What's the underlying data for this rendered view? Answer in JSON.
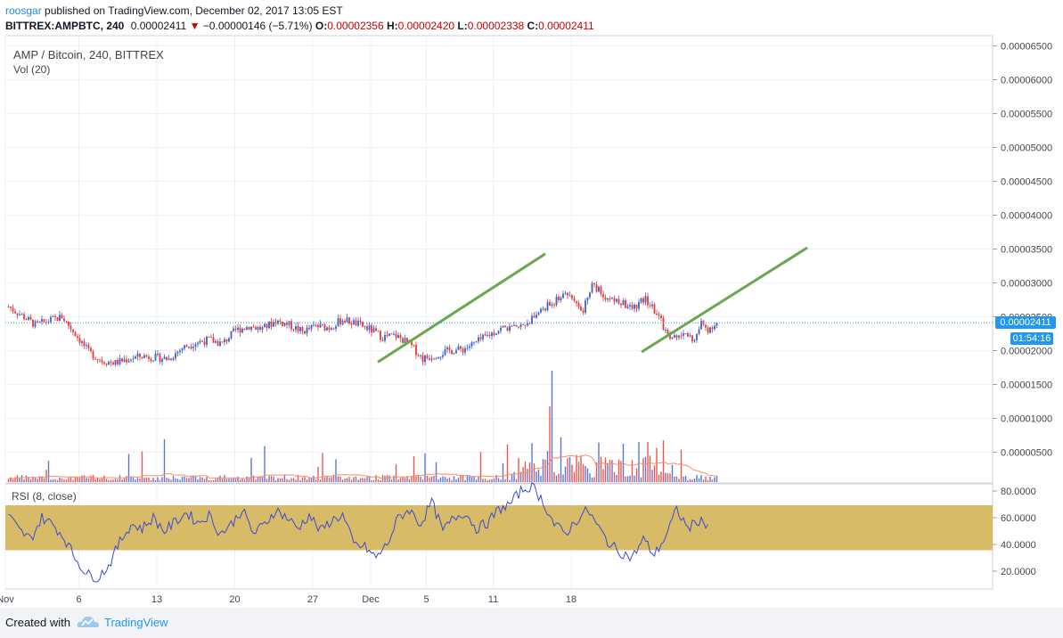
{
  "header": {
    "username": "roosgar",
    "published_text": "published on TradingView.com, December 02, 2017 13:05 EST",
    "symbol_interval": "BITTREX:AMPBTC, 240",
    "last_price": "0.00002411",
    "change": "−0.00000146 (−5.71%)",
    "o_label": "O:",
    "o_value": "0.00002356",
    "h_label": "H:",
    "h_value": "0.00002420",
    "l_label": "L:",
    "l_value": "0.00002338",
    "c_label": "C:",
    "c_value": "0.00002411"
  },
  "price_pane": {
    "title": "AMP / Bitcoin, 240, BITTREX",
    "volume_label": "Vol (20)",
    "price_tag": "0.00002411",
    "countdown_tag": "01:54:16"
  },
  "rsi_pane": {
    "title": "RSI (8, close)"
  },
  "footer": {
    "created_with": "Created with",
    "brand": "TradingView"
  },
  "colors": {
    "up": "#3d5fc8",
    "down": "#e53935",
    "trendline": "#6aa84f",
    "rsi_line": "#3949d6",
    "rsi_band": "#d4b456",
    "ma_line": "#ff8a65",
    "price_line": "#2196f3"
  },
  "chart_data": [
    {
      "type": "candlestick",
      "price_axis_ticks": [
        "0.00000500",
        "0.00001000",
        "0.00001500",
        "0.00002000",
        "0.00002500",
        "0.00003000",
        "0.00003500",
        "0.00004000",
        "0.00004500",
        "0.00005000",
        "0.00005500",
        "0.00006000",
        "0.00006500"
      ],
      "price_axis_values": [
        5e-06,
        1e-05,
        1.5e-05,
        2e-05,
        2.5e-05,
        3e-05,
        3.5e-05,
        4e-05,
        4.5e-05,
        5e-05,
        5.5e-05,
        6e-05,
        6.5e-05
      ],
      "x_tick_labels": [
        "Nov",
        "6",
        "13",
        "20",
        "27",
        "Dec",
        "5",
        "11",
        "18"
      ],
      "x_tick_index": [
        -1,
        32,
        67,
        102,
        137,
        163,
        188,
        218,
        253
      ],
      "last_price": 2.411e-05,
      "close_path": [
        [
          0,
          2.65e-05
        ],
        [
          6,
          2.52e-05
        ],
        [
          12,
          2.38e-05
        ],
        [
          18,
          2.44e-05
        ],
        [
          24,
          2.5e-05
        ],
        [
          30,
          2.25e-05
        ],
        [
          36,
          1.98e-05
        ],
        [
          42,
          1.85e-05
        ],
        [
          48,
          1.82e-05
        ],
        [
          54,
          1.88e-05
        ],
        [
          60,
          1.92e-05
        ],
        [
          66,
          1.9e-05
        ],
        [
          72,
          1.88e-05
        ],
        [
          78,
          2.04e-05
        ],
        [
          84,
          2.12e-05
        ],
        [
          90,
          2.16e-05
        ],
        [
          96,
          2.1e-05
        ],
        [
          102,
          2.3e-05
        ],
        [
          108,
          2.36e-05
        ],
        [
          114,
          2.32e-05
        ],
        [
          120,
          2.44e-05
        ],
        [
          126,
          2.38e-05
        ],
        [
          132,
          2.28e-05
        ],
        [
          138,
          2.36e-05
        ],
        [
          144,
          2.34e-05
        ],
        [
          150,
          2.46e-05
        ],
        [
          156,
          2.4e-05
        ],
        [
          162,
          2.32e-05
        ],
        [
          168,
          2.2e-05
        ],
        [
          174,
          2.22e-05
        ],
        [
          180,
          2.1e-05
        ],
        [
          186,
          1.88e-05
        ],
        [
          192,
          1.94e-05
        ],
        [
          198,
          2e-05
        ],
        [
          204,
          2.02e-05
        ],
        [
          210,
          2.12e-05
        ],
        [
          216,
          2.24e-05
        ],
        [
          222,
          2.34e-05
        ],
        [
          228,
          2.32e-05
        ],
        [
          234,
          2.44e-05
        ],
        [
          240,
          2.62e-05
        ],
        [
          246,
          2.74e-05
        ],
        [
          250,
          2.86e-05
        ],
        [
          254,
          2.78e-05
        ],
        [
          258,
          2.6e-05
        ],
        [
          262,
          3e-05
        ],
        [
          266,
          2.85e-05
        ],
        [
          270,
          2.76e-05
        ],
        [
          274,
          2.72e-05
        ],
        [
          280,
          2.62e-05
        ],
        [
          286,
          2.76e-05
        ],
        [
          292,
          2.5e-05
        ],
        [
          296,
          2.22e-05
        ],
        [
          300,
          2.18e-05
        ],
        [
          304,
          2.26e-05
        ],
        [
          308,
          2.14e-05
        ],
        [
          311,
          2.4e-05
        ],
        [
          314,
          2.32e-05
        ],
        [
          318,
          2.41e-05
        ]
      ],
      "volume_max": 1.8e-06,
      "trendlines": [
        {
          "from": [
            1.83e-05
          ],
          "to": [
            3.43e-05
          ]
        },
        {
          "from": [
            1.98e-05
          ],
          "to": [
            3.52e-05
          ]
        }
      ]
    },
    {
      "type": "line",
      "series": [
        {
          "name": "RSI (8, close)"
        }
      ],
      "y_ticks": [
        "20.0000",
        "40.0000",
        "60.0000",
        "80.0000"
      ],
      "y_values": [
        20,
        40,
        60,
        80
      ],
      "band": [
        35.7,
        69.3
      ],
      "rsi_path": [
        [
          0,
          62
        ],
        [
          5,
          50
        ],
        [
          10,
          44
        ],
        [
          15,
          60
        ],
        [
          20,
          55
        ],
        [
          25,
          45
        ],
        [
          30,
          30
        ],
        [
          35,
          18
        ],
        [
          40,
          15
        ],
        [
          45,
          24
        ],
        [
          50,
          42
        ],
        [
          55,
          55
        ],
        [
          60,
          52
        ],
        [
          65,
          60
        ],
        [
          70,
          50
        ],
        [
          75,
          57
        ],
        [
          80,
          64
        ],
        [
          85,
          56
        ],
        [
          90,
          62
        ],
        [
          95,
          48
        ],
        [
          100,
          55
        ],
        [
          105,
          66
        ],
        [
          110,
          48
        ],
        [
          115,
          55
        ],
        [
          120,
          66
        ],
        [
          125,
          60
        ],
        [
          130,
          52
        ],
        [
          135,
          62
        ],
        [
          140,
          50
        ],
        [
          145,
          58
        ],
        [
          150,
          62
        ],
        [
          155,
          40
        ],
        [
          160,
          38
        ],
        [
          165,
          30
        ],
        [
          170,
          40
        ],
        [
          175,
          60
        ],
        [
          180,
          66
        ],
        [
          185,
          55
        ],
        [
          190,
          72
        ],
        [
          195,
          50
        ],
        [
          200,
          60
        ],
        [
          205,
          64
        ],
        [
          210,
          52
        ],
        [
          215,
          56
        ],
        [
          220,
          66
        ],
        [
          225,
          70
        ],
        [
          230,
          80
        ],
        [
          235,
          84
        ],
        [
          240,
          72
        ],
        [
          245,
          55
        ],
        [
          250,
          48
        ],
        [
          255,
          58
        ],
        [
          260,
          66
        ],
        [
          265,
          52
        ],
        [
          270,
          40
        ],
        [
          275,
          34
        ],
        [
          280,
          30
        ],
        [
          285,
          44
        ],
        [
          290,
          32
        ],
        [
          295,
          46
        ],
        [
          300,
          66
        ],
        [
          305,
          52
        ],
        [
          310,
          58
        ],
        [
          314,
          55
        ]
      ]
    }
  ]
}
